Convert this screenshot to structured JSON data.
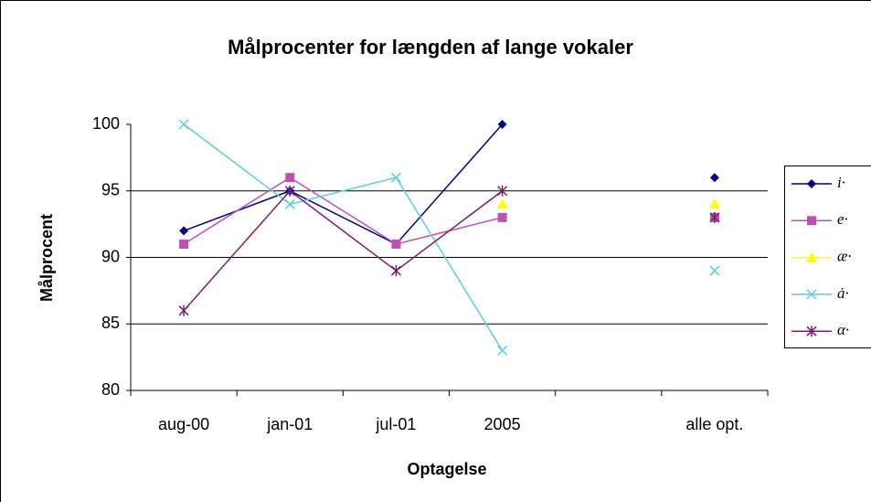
{
  "chart_data": {
    "type": "line",
    "title": "Målprocenter for længden af lange vokaler",
    "xlabel": "Optagelse",
    "ylabel": "Målprocent",
    "categories": [
      "aug-00",
      "jan-01",
      "jul-01",
      "2005",
      null,
      "alle opt."
    ],
    "series": [
      {
        "name": "i·",
        "color": "#000080",
        "marker": "diamond",
        "values": [
          92,
          95,
          91,
          100,
          null,
          96
        ]
      },
      {
        "name": "e·",
        "color": "#c050b0",
        "marker": "square",
        "values": [
          91,
          96,
          91,
          93,
          null,
          93
        ]
      },
      {
        "name": "æ·",
        "color": "#ffff00",
        "marker": "triangle",
        "values": [
          null,
          null,
          null,
          94,
          null,
          94
        ]
      },
      {
        "name": "ȧ·",
        "color": "#5bd0d8",
        "marker": "x",
        "values": [
          100,
          94,
          96,
          83,
          null,
          89
        ]
      },
      {
        "name": "α·",
        "color": "#7a1f6e",
        "marker": "star",
        "values": [
          86,
          95,
          89,
          95,
          null,
          93
        ]
      }
    ],
    "ylim": [
      80,
      100
    ],
    "yticks": [
      80,
      85,
      90,
      95,
      100
    ],
    "grid": true,
    "legend": "right"
  }
}
